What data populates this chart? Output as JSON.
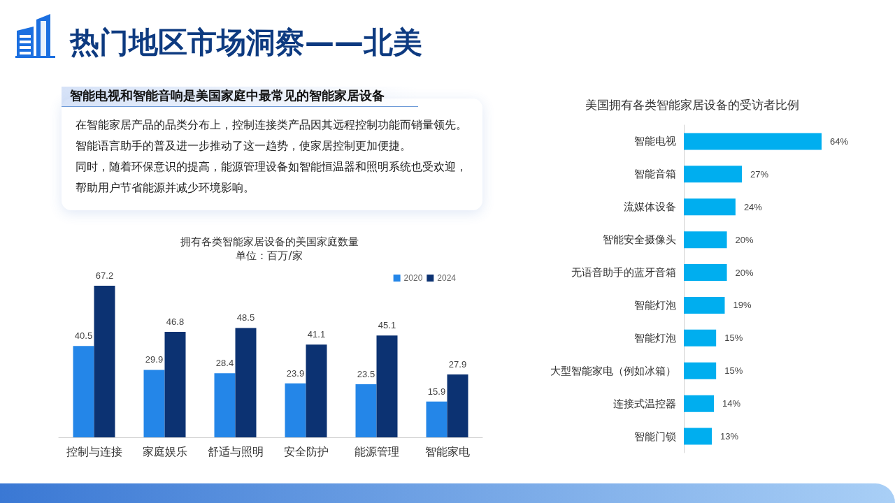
{
  "chart_data": [
    {
      "type": "other",
      "title": "热门地区市场洞察——北美",
      "subtitle": "智能电视和智能音响是美国家庭中最常见的智能家居设备",
      "annotations": [
        "在智能家居产品的品类分布上，控制连接类产品因其远程控制功能而销量领先。",
        "智能语言助手的普及进一步推动了这一趋势，使家居控制更加便捷。",
        "同时，随着环保意识的提高，能源管理设备如智能恒温器和照明系统也受欢迎，",
        "帮助用户节省能源并减少环境影响。"
      ]
    },
    {
      "type": "bar",
      "title": "拥有各类智能家居设备的美国家庭数量",
      "subtitle": "单位：百万/家",
      "categories": [
        "控制与连接",
        "家庭娱乐",
        "舒适与照明",
        "安全防护",
        "能源管理",
        "智能家电"
      ],
      "series": [
        {
          "name": "2020",
          "color": "#2486e8",
          "values": [
            40.5,
            29.9,
            28.4,
            23.9,
            23.5,
            15.9
          ]
        },
        {
          "name": "2024",
          "color": "#0c3272",
          "values": [
            67.2,
            46.8,
            48.5,
            41.1,
            45.1,
            27.9
          ]
        }
      ],
      "data_labels": true,
      "legend": "top right"
    },
    {
      "type": "bar",
      "orientation": "horizontal",
      "title": "美国拥有各类智能家居设备的受访者比例",
      "categories": [
        "智能电视",
        "智能音箱",
        "流媒体设备",
        "智能安全摄像头",
        "无语音助手的蓝牙音箱",
        "智能灯泡",
        "智能灯泡",
        "大型智能家电（例如冰箱）",
        "连接式温控器",
        "智能门锁"
      ],
      "values": [
        64,
        27,
        24,
        20,
        20,
        19,
        15,
        15,
        14,
        13
      ],
      "color": "#00aeef",
      "value_labels": [
        "64%",
        "27%",
        "24%",
        "20%",
        "20%",
        "19%",
        "15%",
        "15%",
        "14%",
        "13%"
      ]
    }
  ]
}
